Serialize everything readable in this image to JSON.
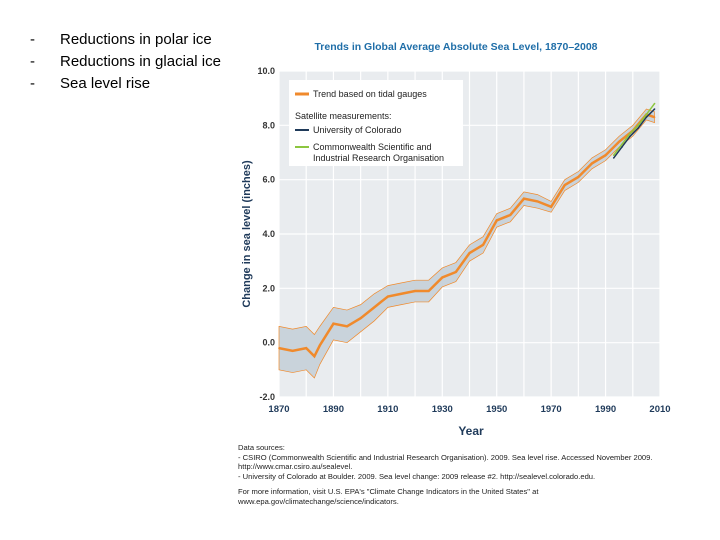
{
  "bullets": [
    "Reductions in polar ice",
    "Reductions in glacial ice",
    "Sea level rise"
  ],
  "chart_data": {
    "type": "line",
    "title": "Trends in Global Average Absolute Sea Level, 1870–2008",
    "xlabel": "Year",
    "ylabel": "Change in sea level (inches)",
    "xlim": [
      1870,
      2010
    ],
    "ylim": [
      -2.0,
      10.0
    ],
    "xticks": [
      "1870",
      "1890",
      "1910",
      "1930",
      "1950",
      "1970",
      "1990",
      "2010"
    ],
    "yticks": [
      "-2.0",
      "0.0",
      "2.0",
      "4.0",
      "6.0",
      "8.0",
      "10.0"
    ],
    "grid": true,
    "legend_position": "top-left",
    "legend": {
      "tidal": "Trend based on tidal gauges",
      "satellite_header": "Satellite measurements:",
      "colorado": "University of Colorado",
      "csiro": "Commonwealth Scientific and Industrial Research Organisation"
    },
    "colors": {
      "tidal": "#f08a2c",
      "band": "#c9d3db",
      "colorado": "#1f3a5a",
      "csiro": "#8cc63f",
      "title": "#1f6ea8",
      "plot_bg": "#e9ecef"
    },
    "series": [
      {
        "name": "Trend based on tidal gauges",
        "x": [
          1870,
          1875,
          1880,
          1883,
          1885,
          1890,
          1895,
          1900,
          1905,
          1910,
          1915,
          1920,
          1925,
          1930,
          1935,
          1940,
          1945,
          1950,
          1955,
          1960,
          1965,
          1970,
          1975,
          1980,
          1985,
          1990,
          1995,
          2000,
          2005,
          2008
        ],
        "y": [
          -0.2,
          -0.3,
          -0.2,
          -0.5,
          -0.1,
          0.7,
          0.6,
          0.9,
          1.3,
          1.7,
          1.8,
          1.9,
          1.9,
          2.4,
          2.6,
          3.3,
          3.6,
          4.5,
          4.7,
          5.3,
          5.2,
          5.0,
          5.8,
          6.1,
          6.6,
          6.9,
          7.4,
          7.8,
          8.4,
          8.3
        ],
        "uncertainty": [
          0.8,
          0.8,
          0.8,
          0.8,
          0.7,
          0.6,
          0.6,
          0.5,
          0.5,
          0.4,
          0.4,
          0.4,
          0.4,
          0.35,
          0.35,
          0.3,
          0.3,
          0.25,
          0.25,
          0.25,
          0.25,
          0.2,
          0.2,
          0.2,
          0.2,
          0.2,
          0.2,
          0.2,
          0.2,
          0.2
        ]
      },
      {
        "name": "University of Colorado",
        "x": [
          1993,
          1996,
          1999,
          2002,
          2005,
          2008
        ],
        "y": [
          6.8,
          7.2,
          7.6,
          7.9,
          8.3,
          8.6
        ]
      },
      {
        "name": "Commonwealth Scientific and Industrial Research Organisation",
        "x": [
          1993,
          1996,
          1999,
          2002,
          2005,
          2008
        ],
        "y": [
          6.9,
          7.3,
          7.7,
          8.0,
          8.4,
          8.8
        ]
      }
    ]
  },
  "sources": {
    "heading": "Data sources:",
    "line1": "- CSIRO (Commonwealth Scientific and Industrial Research Organisation). 2009. Sea level rise. Accessed November 2009. http://www.cmar.csiro.au/sealevel.",
    "line2": "- University of Colorado at Boulder. 2009. Sea level change: 2009 release #2. http://sealevel.colorado.edu.",
    "more": "For more information, visit U.S. EPA's \"Climate Change Indicators in the United States\" at www.epa.gov/climatechange/science/indicators."
  }
}
